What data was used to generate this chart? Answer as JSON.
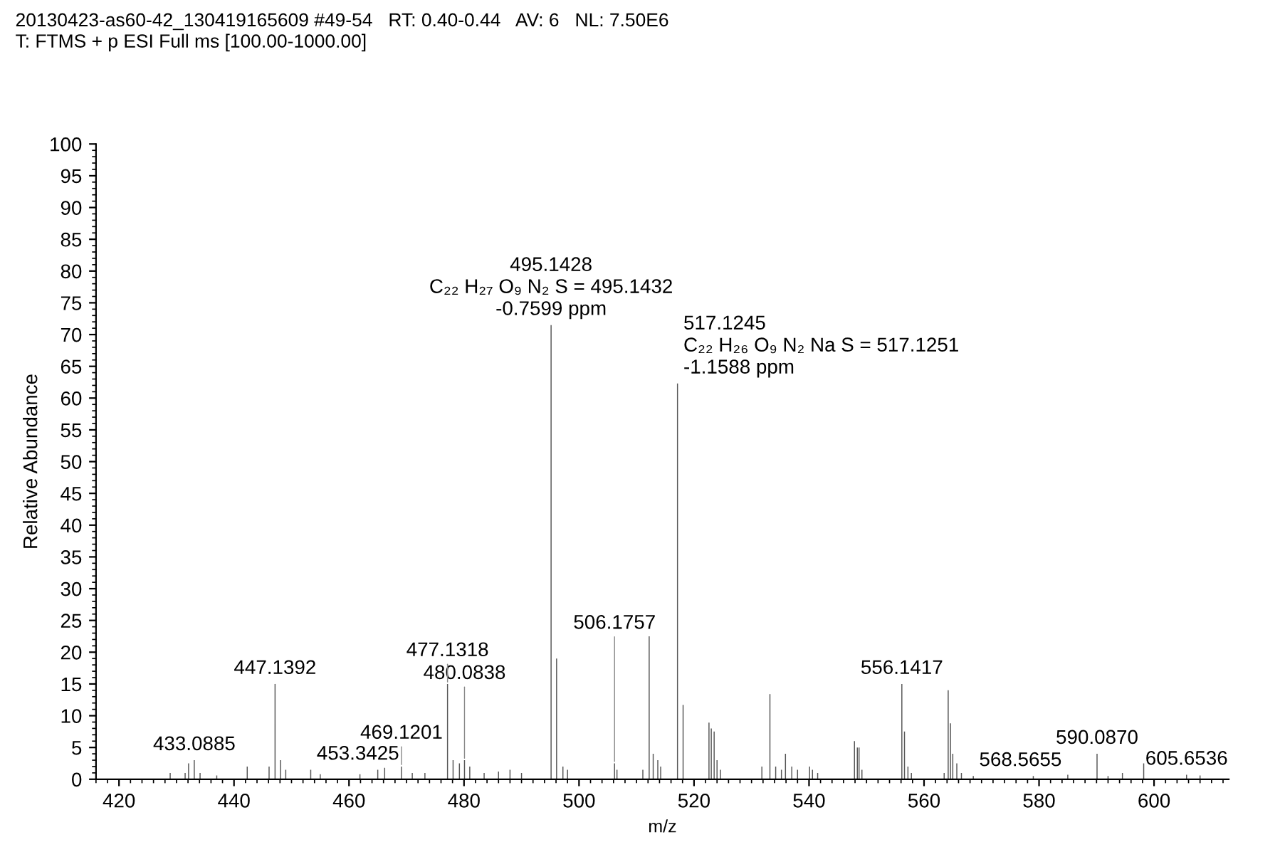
{
  "chart_data": {
    "type": "bar",
    "title": "20130423-as60-42_130419165609 #49-54   RT: 0.40-0.44   AV: 6   NL: 7.50E6",
    "subtitle": "T: FTMS + p ESI Full ms [100.00-1000.00]",
    "xlabel": "m/z",
    "ylabel": "Relative Abundance",
    "x": [
      428.9,
      431.5,
      432.1,
      433.0885,
      434.1,
      437,
      442.3,
      446.1,
      447.1392,
      448.1,
      449,
      453.3425,
      455,
      461.9,
      465,
      466.2,
      469.1201,
      471,
      473.2,
      477.1318,
      478.1,
      479.2,
      480.0838,
      481,
      483.5,
      486,
      488,
      490,
      495.1428,
      496.1,
      497.2,
      498,
      506.1757,
      506.6,
      511.1,
      512.2,
      512.9,
      513.7,
      514.2,
      517.1245,
      518.1,
      522.6,
      523.0,
      523.5,
      524,
      524.6,
      531.8,
      533.2,
      534.2,
      535.2,
      535.9,
      537,
      538,
      540.1,
      540.6,
      541.5,
      547.9,
      548.4,
      548.7,
      549.2,
      556.1417,
      556.6,
      557.2,
      557.8,
      563.5,
      564.2,
      564.6,
      565,
      565.7,
      566.5,
      568.5655,
      579,
      585,
      590.087,
      592,
      594.5,
      598.2,
      605.6536,
      608
    ],
    "values": [
      1,
      1,
      2.5,
      3,
      1,
      0.6,
      2,
      2,
      15,
      3,
      1.5,
      1.5,
      0.8,
      0.8,
      1.5,
      1.8,
      2,
      1,
      1,
      15,
      3,
      2.5,
      3,
      2,
      1,
      1.2,
      1.5,
      1,
      71.5,
      19,
      2,
      1.5,
      2.5,
      1.5,
      1.5,
      22.5,
      4,
      3,
      2,
      62.3,
      11.7,
      8.9,
      8,
      7.5,
      3,
      1.5,
      2,
      13.4,
      2,
      1.5,
      4,
      2,
      1.5,
      2,
      1.5,
      1,
      6,
      5,
      5,
      1.5,
      15,
      7.5,
      2,
      1,
      1,
      14,
      8.8,
      4,
      2.5,
      1,
      0.5,
      0.5,
      0.7,
      4,
      0.5,
      1,
      2.5,
      0.7,
      0.6
    ],
    "color": "#555555",
    "xlim": [
      416,
      613
    ],
    "xticks": [
      420,
      440,
      460,
      480,
      500,
      520,
      540,
      560,
      580,
      600
    ],
    "ylim": [
      0,
      100
    ],
    "yticks": [
      0,
      5,
      10,
      15,
      20,
      25,
      30,
      35,
      40,
      45,
      50,
      55,
      60,
      65,
      70,
      75,
      80,
      85,
      90,
      95,
      100
    ],
    "grid": false,
    "legend": false,
    "annotations": [
      {
        "text": "433.0885",
        "x": 433.0885,
        "y": 3
      },
      {
        "text": "447.1392",
        "x": 447.1392,
        "y": 15
      },
      {
        "text": "453.3425",
        "x": 453.3425,
        "y": 1.5
      },
      {
        "text": "469.1201",
        "x": 469.1201,
        "y": 2
      },
      {
        "text": "477.1318",
        "x": 477.1318,
        "y": 15
      },
      {
        "text": "480.0838",
        "x": 480.0838,
        "y": 3
      },
      {
        "text": "495.1428\nC₂₂ H₂₇ O₉ N₂ S = 495.1432\n-0.7599 ppm",
        "x": 495.1428,
        "y": 71.5
      },
      {
        "text": "506.1757",
        "x": 506.1757,
        "y": 2.5
      },
      {
        "text": "517.1245\nC₂₂ H₂₆ O₉ N₂ Na S = 517.1251\n-1.1588 ppm",
        "x": 517.1245,
        "y": 62.3
      },
      {
        "text": "556.1417",
        "x": 556.1417,
        "y": 15
      },
      {
        "text": "568.5655",
        "x": 568.5655,
        "y": 0.5
      },
      {
        "text": "590.0870",
        "x": 590.087,
        "y": 4
      },
      {
        "text": "605.6536",
        "x": 605.6536,
        "y": 0.7
      }
    ]
  }
}
